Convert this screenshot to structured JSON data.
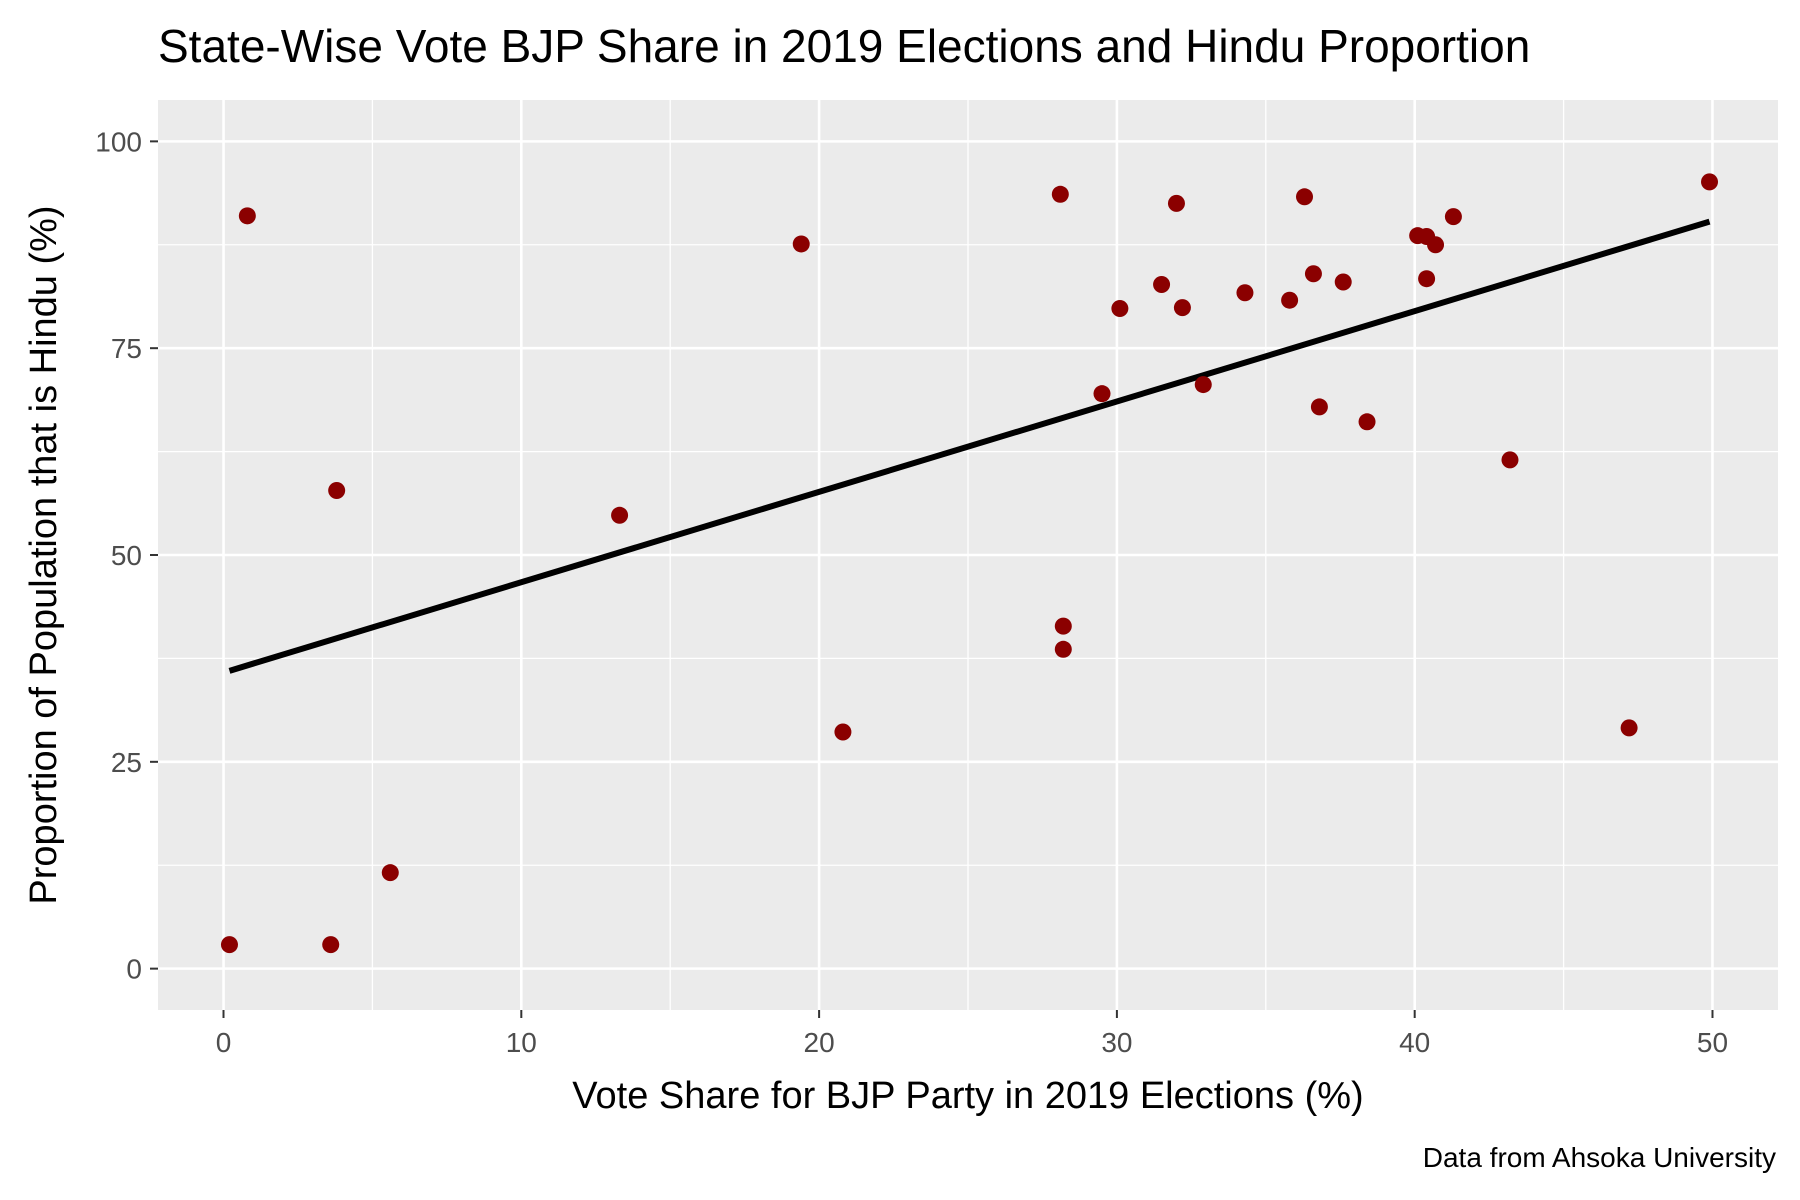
{
  "chart_data": {
    "type": "scatter",
    "title": "State-Wise Vote BJP Share in 2019 Elections and Hindu Proportion",
    "xlabel": "Vote Share for BJP Party in 2019 Elections (%)",
    "ylabel": "Proportion of Population that is Hindu (%)",
    "caption": "Data from Ahsoka University",
    "xlim": [
      -2.2,
      52.2
    ],
    "ylim": [
      -5,
      105
    ],
    "x_ticks": [
      0,
      10,
      20,
      30,
      40,
      50
    ],
    "y_ticks": [
      0,
      25,
      50,
      75,
      100
    ],
    "x_tick_labels": [
      "0",
      "10",
      "20",
      "30",
      "40",
      "50"
    ],
    "y_tick_labels": [
      "0",
      "25",
      "50",
      "75",
      "100"
    ],
    "grid": true,
    "legend": "none",
    "colors": {
      "panel_background": "#ebebeb",
      "grid": "#ffffff",
      "point": "#8b0000",
      "trend_line": "#000000"
    },
    "trend_line": {
      "x": [
        0.2,
        49.9
      ],
      "y": [
        36.0,
        90.3
      ]
    },
    "points": [
      {
        "x": 0.2,
        "y": 2.9
      },
      {
        "x": 0.8,
        "y": 91.0
      },
      {
        "x": 3.6,
        "y": 2.9
      },
      {
        "x": 3.8,
        "y": 57.8
      },
      {
        "x": 5.6,
        "y": 11.6
      },
      {
        "x": 13.3,
        "y": 54.8
      },
      {
        "x": 19.4,
        "y": 87.6
      },
      {
        "x": 20.8,
        "y": 28.6
      },
      {
        "x": 28.1,
        "y": 93.6
      },
      {
        "x": 28.2,
        "y": 41.4
      },
      {
        "x": 28.2,
        "y": 38.6
      },
      {
        "x": 29.5,
        "y": 69.5
      },
      {
        "x": 30.1,
        "y": 79.8
      },
      {
        "x": 31.5,
        "y": 82.7
      },
      {
        "x": 32.0,
        "y": 92.5
      },
      {
        "x": 32.2,
        "y": 79.9
      },
      {
        "x": 32.9,
        "y": 70.6
      },
      {
        "x": 34.3,
        "y": 81.7
      },
      {
        "x": 35.8,
        "y": 80.8
      },
      {
        "x": 36.3,
        "y": 93.3
      },
      {
        "x": 36.6,
        "y": 84.0
      },
      {
        "x": 36.8,
        "y": 67.9
      },
      {
        "x": 37.6,
        "y": 83.0
      },
      {
        "x": 38.4,
        "y": 66.1
      },
      {
        "x": 40.1,
        "y": 88.6
      },
      {
        "x": 40.4,
        "y": 88.5
      },
      {
        "x": 40.4,
        "y": 83.4
      },
      {
        "x": 40.7,
        "y": 87.5
      },
      {
        "x": 41.3,
        "y": 90.9
      },
      {
        "x": 43.2,
        "y": 61.5
      },
      {
        "x": 47.2,
        "y": 29.1
      },
      {
        "x": 49.9,
        "y": 95.1
      }
    ]
  }
}
